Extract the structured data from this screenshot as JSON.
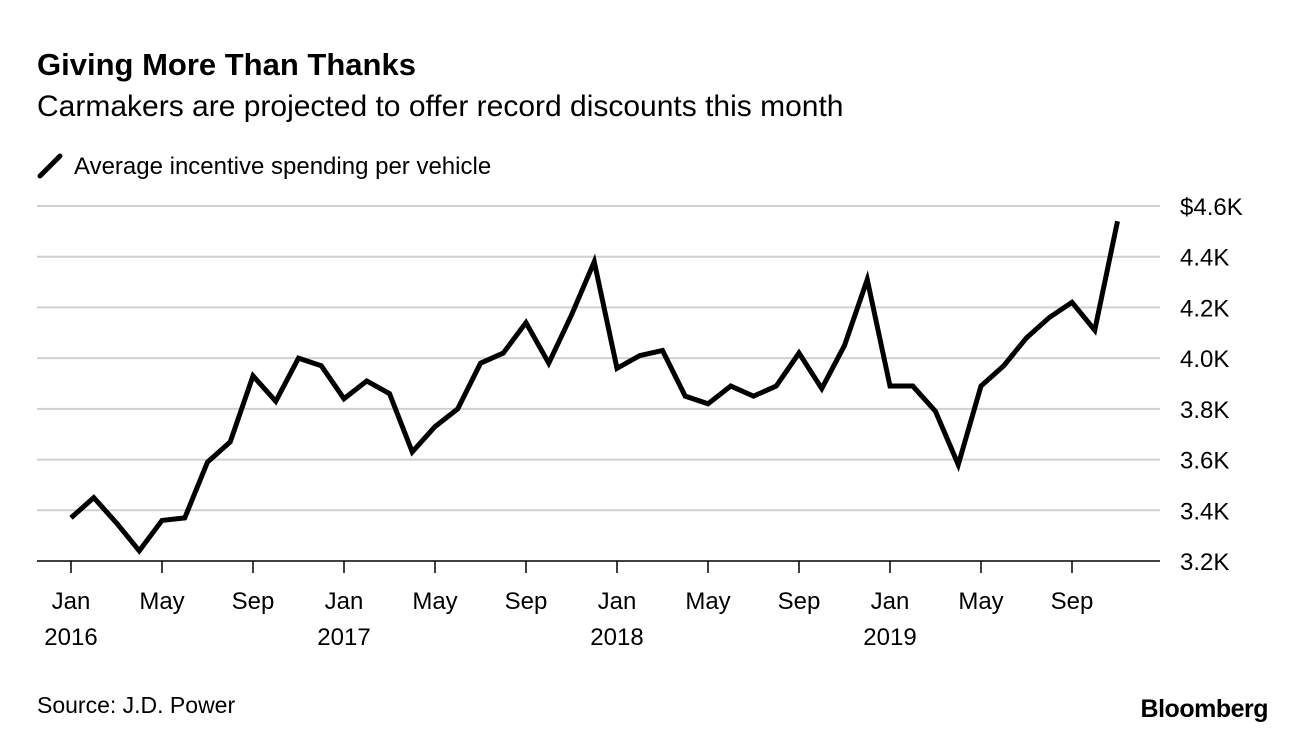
{
  "chart_data": {
    "type": "line",
    "title": "Giving More Than Thanks",
    "subtitle": "Carmakers are projected to offer record discounts this month",
    "source": "Source: J.D. Power",
    "brand": "Bloomberg",
    "categories": [
      "Jan\n2016",
      null,
      null,
      null,
      "May",
      null,
      null,
      null,
      "Sep",
      null,
      null,
      null,
      "Jan\n2017",
      null,
      null,
      null,
      "May",
      null,
      null,
      null,
      "Sep",
      null,
      null,
      null,
      "Jan\n2018",
      null,
      null,
      null,
      "May",
      null,
      null,
      null,
      "Sep",
      null,
      null,
      null,
      "Jan\n2019",
      null,
      null,
      null,
      "May",
      null,
      null,
      null,
      "Sep",
      null,
      null
    ],
    "series": [
      {
        "name": "Average incentive spending per vehicle",
        "color": "#000000",
        "values": [
          3.37,
          3.45,
          3.35,
          3.24,
          3.36,
          3.37,
          3.59,
          3.67,
          3.93,
          3.83,
          4.0,
          3.97,
          3.84,
          3.91,
          3.86,
          3.63,
          3.73,
          3.8,
          3.98,
          4.02,
          4.14,
          3.98,
          4.17,
          4.38,
          3.96,
          4.01,
          4.03,
          3.85,
          3.82,
          3.89,
          3.85,
          3.89,
          4.02,
          3.88,
          4.05,
          4.31,
          3.89,
          3.89,
          3.79,
          3.58,
          3.89,
          3.97,
          4.08,
          4.16,
          4.22,
          4.11,
          4.54
        ]
      }
    ],
    "ylim": [
      3.2,
      4.6
    ],
    "yticks": [
      {
        "value": 3.2,
        "label": "3.2K"
      },
      {
        "value": 3.4,
        "label": "3.4K"
      },
      {
        "value": 3.6,
        "label": "3.6K"
      },
      {
        "value": 3.8,
        "label": "3.8K"
      },
      {
        "value": 4.0,
        "label": "4.0K"
      },
      {
        "value": 4.2,
        "label": "4.2K"
      },
      {
        "value": 4.4,
        "label": "4.4K"
      },
      {
        "value": 4.6,
        "label": "$4.6K"
      }
    ],
    "grid": true
  }
}
